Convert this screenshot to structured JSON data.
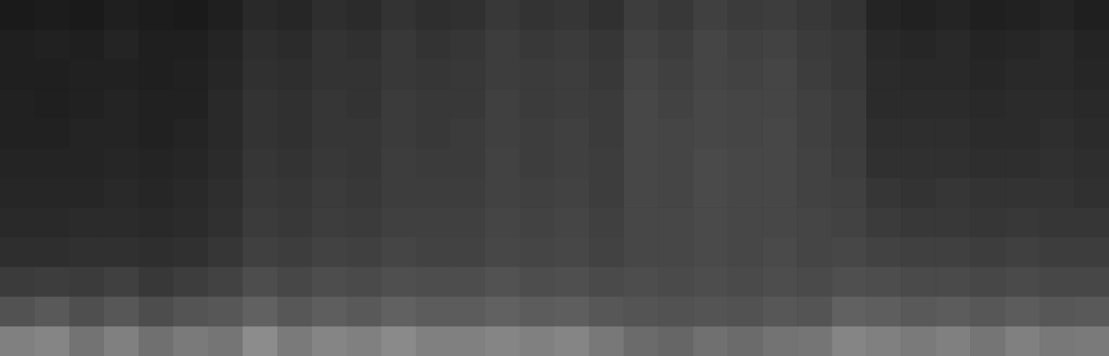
{
  "chart_data": {
    "type": "heatmap",
    "tick_labels": false,
    "zlim": [
      0,
      100
    ],
    "cells": [
      [
        10,
        11,
        10,
        12,
        11,
        10,
        12,
        16,
        15,
        18,
        17,
        20,
        18,
        19,
        22,
        20,
        21,
        19,
        24,
        22,
        25,
        23,
        24,
        22,
        20,
        14,
        13,
        14,
        12,
        13,
        14,
        12
      ],
      [
        12,
        13,
        12,
        14,
        12,
        12,
        14,
        18,
        17,
        20,
        19,
        22,
        20,
        21,
        24,
        22,
        23,
        21,
        26,
        24,
        27,
        25,
        26,
        23,
        22,
        16,
        15,
        16,
        14,
        15,
        16,
        14
      ],
      [
        12,
        12,
        13,
        13,
        12,
        13,
        15,
        19,
        18,
        20,
        20,
        22,
        21,
        22,
        24,
        23,
        24,
        22,
        27,
        25,
        27,
        26,
        27,
        24,
        22,
        17,
        16,
        16,
        15,
        16,
        16,
        15
      ],
      [
        13,
        12,
        13,
        14,
        13,
        13,
        16,
        20,
        19,
        21,
        20,
        23,
        22,
        22,
        25,
        23,
        24,
        23,
        28,
        26,
        28,
        27,
        27,
        25,
        23,
        17,
        17,
        17,
        16,
        17,
        17,
        16
      ],
      [
        13,
        13,
        14,
        14,
        13,
        14,
        16,
        20,
        19,
        21,
        21,
        23,
        22,
        23,
        25,
        24,
        25,
        23,
        28,
        27,
        28,
        27,
        28,
        25,
        23,
        18,
        18,
        18,
        17,
        17,
        18,
        17
      ],
      [
        14,
        14,
        14,
        15,
        14,
        15,
        17,
        21,
        20,
        22,
        21,
        24,
        23,
        23,
        26,
        24,
        25,
        24,
        28,
        27,
        29,
        28,
        28,
        26,
        24,
        19,
        19,
        19,
        18,
        18,
        19,
        18
      ],
      [
        15,
        15,
        15,
        16,
        15,
        16,
        18,
        22,
        21,
        23,
        22,
        24,
        24,
        24,
        26,
        25,
        26,
        24,
        28,
        27,
        29,
        28,
        28,
        26,
        25,
        21,
        20,
        21,
        20,
        20,
        20,
        19
      ],
      [
        16,
        16,
        17,
        17,
        16,
        17,
        19,
        23,
        22,
        24,
        23,
        25,
        25,
        25,
        27,
        26,
        27,
        25,
        28,
        28,
        29,
        28,
        28,
        27,
        26,
        23,
        22,
        22,
        21,
        22,
        21,
        21
      ],
      [
        18,
        18,
        19,
        19,
        18,
        19,
        21,
        25,
        24,
        26,
        25,
        27,
        26,
        26,
        28,
        27,
        28,
        26,
        28,
        28,
        29,
        28,
        29,
        27,
        28,
        26,
        25,
        25,
        24,
        25,
        24,
        24
      ],
      [
        23,
        24,
        23,
        25,
        22,
        24,
        26,
        30,
        28,
        30,
        29,
        31,
        30,
        30,
        32,
        30,
        31,
        29,
        30,
        29,
        30,
        29,
        30,
        29,
        31,
        30,
        29,
        29,
        28,
        29,
        28,
        28
      ],
      [
        32,
        35,
        31,
        34,
        30,
        33,
        34,
        38,
        34,
        37,
        35,
        38,
        36,
        36,
        38,
        36,
        37,
        34,
        33,
        32,
        33,
        32,
        34,
        33,
        38,
        37,
        35,
        36,
        34,
        36,
        34,
        35
      ],
      [
        50,
        52,
        45,
        50,
        44,
        48,
        46,
        55,
        48,
        52,
        50,
        54,
        50,
        50,
        52,
        50,
        52,
        47,
        42,
        40,
        44,
        42,
        45,
        46,
        52,
        50,
        48,
        50,
        46,
        50,
        47,
        48
      ]
    ]
  }
}
